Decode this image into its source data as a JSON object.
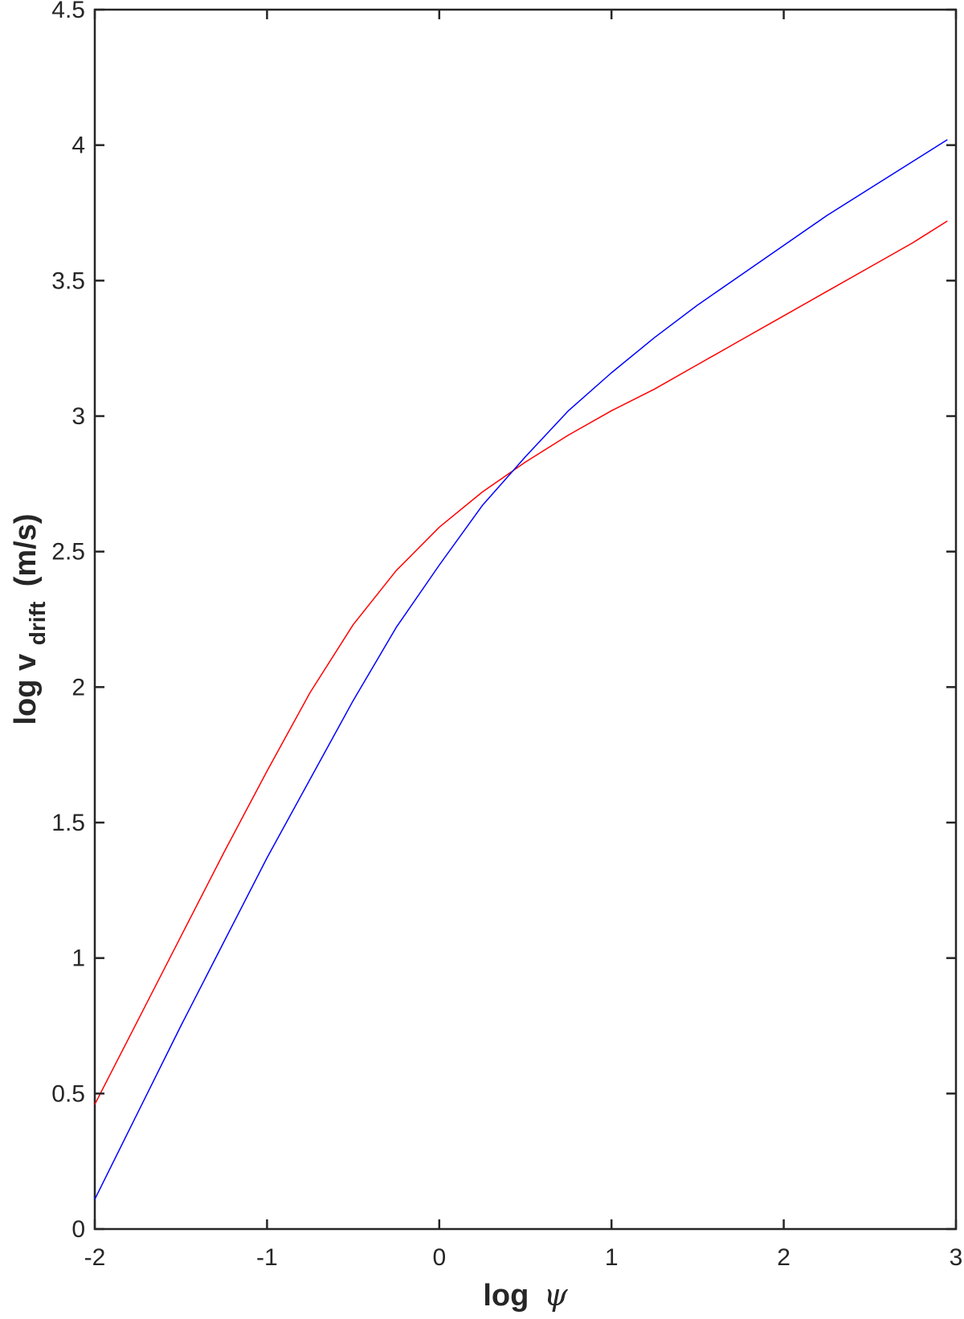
{
  "chart_data": {
    "type": "line",
    "xlabel": "log",
    "xlabel_symbol": "ψ",
    "ylabel_main": "log v",
    "ylabel_sub": "drift",
    "ylabel_unit": "(m/s)",
    "xlim": [
      -2,
      3
    ],
    "ylim": [
      0,
      4.5
    ],
    "xticks": [
      -2,
      -1,
      0,
      1,
      2,
      3
    ],
    "xtick_labels": [
      "-2",
      "-1",
      "0",
      "1",
      "2",
      "3"
    ],
    "yticks": [
      0,
      0.5,
      1,
      1.5,
      2,
      2.5,
      3,
      3.5,
      4,
      4.5
    ],
    "ytick_labels": [
      "0",
      "0.5",
      "1",
      "1.5",
      "2",
      "2.5",
      "3",
      "3.5",
      "4",
      "4.5"
    ],
    "grid": false,
    "legend": "none",
    "series": [
      {
        "color": "#ff0000",
        "points": [
          [
            -2.0,
            0.46
          ],
          [
            -1.75,
            0.77
          ],
          [
            -1.5,
            1.08
          ],
          [
            -1.25,
            1.39
          ],
          [
            -1.0,
            1.69
          ],
          [
            -0.75,
            1.98
          ],
          [
            -0.5,
            2.23
          ],
          [
            -0.25,
            2.43
          ],
          [
            0.0,
            2.59
          ],
          [
            0.25,
            2.72
          ],
          [
            0.5,
            2.83
          ],
          [
            0.75,
            2.93
          ],
          [
            1.0,
            3.02
          ],
          [
            1.25,
            3.1
          ],
          [
            1.5,
            3.19
          ],
          [
            1.75,
            3.28
          ],
          [
            2.0,
            3.37
          ],
          [
            2.25,
            3.46
          ],
          [
            2.5,
            3.55
          ],
          [
            2.75,
            3.64
          ],
          [
            2.95,
            3.72
          ]
        ]
      },
      {
        "color": "#0000ff",
        "points": [
          [
            -2.0,
            0.11
          ],
          [
            -1.75,
            0.43
          ],
          [
            -1.5,
            0.75
          ],
          [
            -1.25,
            1.06
          ],
          [
            -1.0,
            1.37
          ],
          [
            -0.75,
            1.66
          ],
          [
            -0.5,
            1.95
          ],
          [
            -0.25,
            2.22
          ],
          [
            0.0,
            2.45
          ],
          [
            0.25,
            2.67
          ],
          [
            0.5,
            2.85
          ],
          [
            0.75,
            3.02
          ],
          [
            1.0,
            3.16
          ],
          [
            1.25,
            3.29
          ],
          [
            1.5,
            3.41
          ],
          [
            1.75,
            3.52
          ],
          [
            2.0,
            3.63
          ],
          [
            2.25,
            3.74
          ],
          [
            2.5,
            3.84
          ],
          [
            2.75,
            3.94
          ],
          [
            2.95,
            4.02
          ]
        ]
      }
    ]
  }
}
